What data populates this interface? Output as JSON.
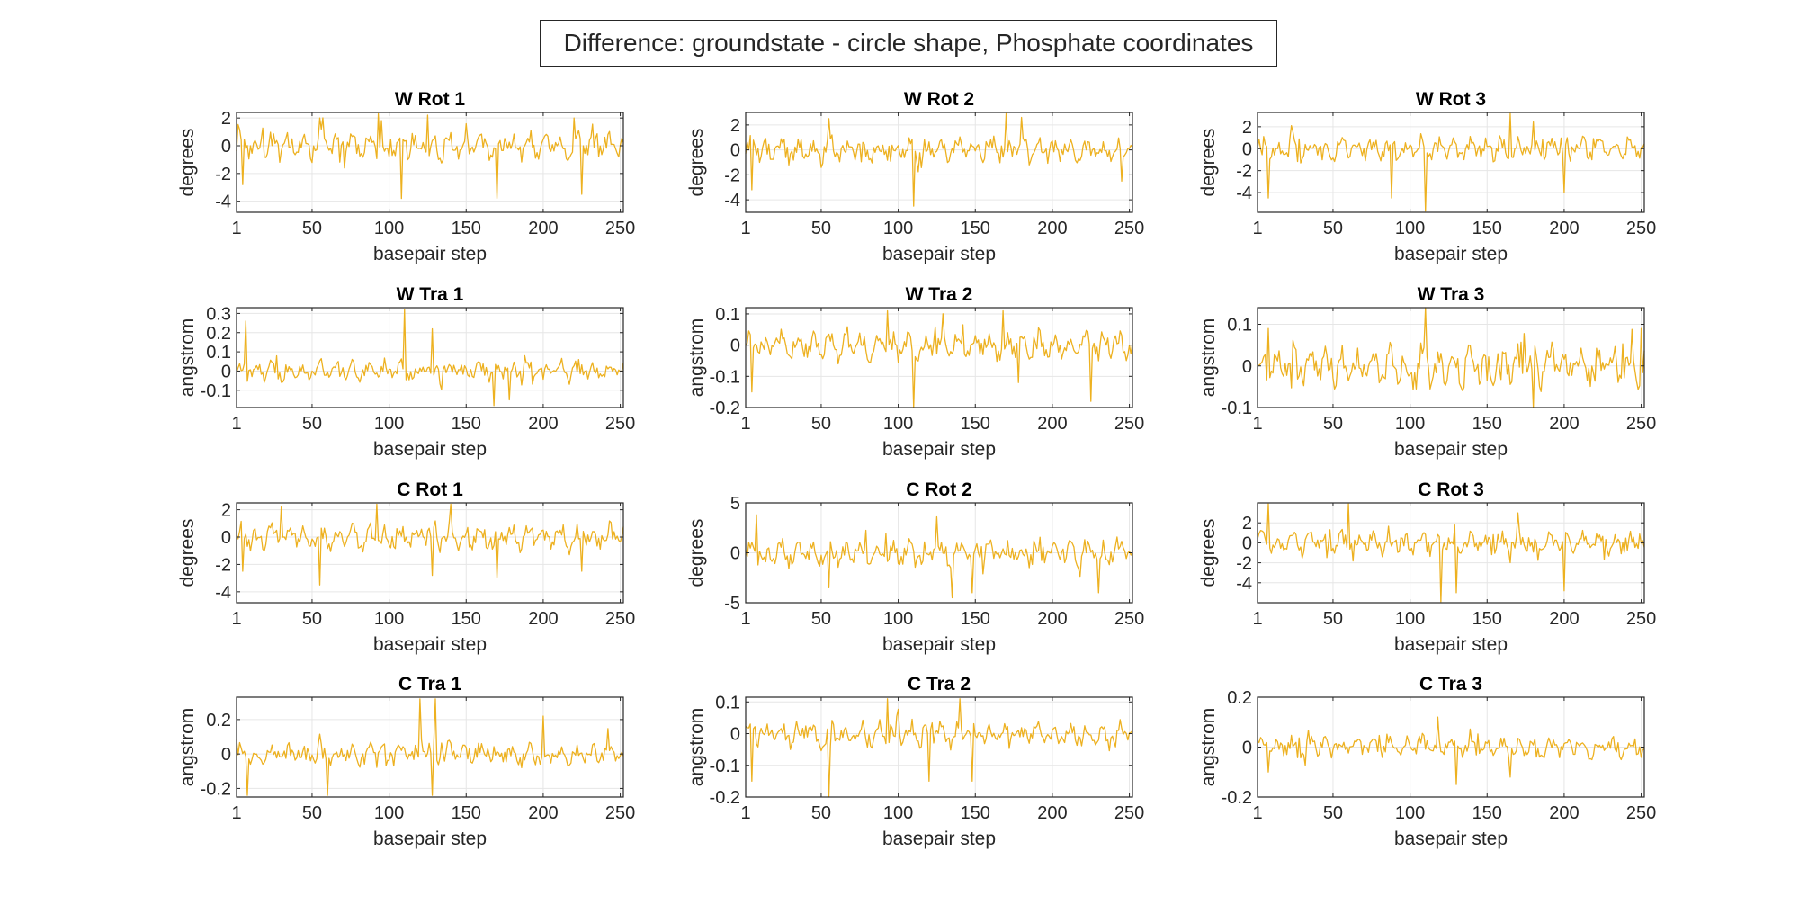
{
  "figure": {
    "suptitle": "Difference: groundstate - circle shape, Phosphate coordinates",
    "line_color": "#EDB120",
    "grid_color": "#e6e6e6",
    "axis_color": "#262626"
  },
  "chart_data": [
    {
      "type": "line",
      "title": "W Rot 1",
      "xlabel": "basepair step",
      "ylabel": "degrees",
      "xlim": [
        1,
        252
      ],
      "ylim": [
        -4.8,
        2.4
      ],
      "xticks": [
        1,
        50,
        100,
        150,
        200,
        250
      ],
      "yticks": [
        -4,
        -2,
        0,
        2
      ],
      "grid": true,
      "n_points": 252,
      "seed": 11,
      "amplitude": 0.9,
      "peaks": [
        [
          5,
          -2.8
        ],
        [
          55,
          2.0
        ],
        [
          93,
          2.3
        ],
        [
          108,
          -3.8
        ],
        [
          125,
          2.2
        ],
        [
          170,
          -3.8
        ],
        [
          220,
          2.0
        ],
        [
          225,
          -3.5
        ]
      ],
      "x_note": "x = 1..252",
      "series": [
        {
          "values": "generated"
        }
      ]
    },
    {
      "type": "line",
      "title": "W Rot 2",
      "xlabel": "basepair step",
      "ylabel": "degrees",
      "xlim": [
        1,
        252
      ],
      "ylim": [
        -5,
        3
      ],
      "xticks": [
        1,
        50,
        100,
        150,
        200,
        250
      ],
      "yticks": [
        -4,
        -2,
        0,
        2
      ],
      "grid": true,
      "n_points": 252,
      "seed": 12,
      "amplitude": 0.9,
      "peaks": [
        [
          5,
          -3.2
        ],
        [
          55,
          2.5
        ],
        [
          110,
          -4.5
        ],
        [
          170,
          2.9
        ],
        [
          180,
          2.6
        ],
        [
          245,
          -2.5
        ]
      ],
      "series": [
        {
          "values": "generated"
        }
      ]
    },
    {
      "type": "line",
      "title": "W Rot 3",
      "xlabel": "basepair step",
      "ylabel": "degrees",
      "xlim": [
        1,
        252
      ],
      "ylim": [
        -5.8,
        3.3
      ],
      "xticks": [
        1,
        50,
        100,
        150,
        200,
        250
      ],
      "yticks": [
        -4,
        -2,
        0,
        2
      ],
      "grid": true,
      "n_points": 252,
      "seed": 13,
      "amplitude": 1.0,
      "peaks": [
        [
          8,
          -4.5
        ],
        [
          88,
          -4.5
        ],
        [
          110,
          -5.7
        ],
        [
          165,
          3.2
        ],
        [
          200,
          -4.0
        ]
      ],
      "series": [
        {
          "values": "generated"
        }
      ]
    },
    {
      "type": "line",
      "title": "W Tra 1",
      "xlabel": "basepair step",
      "ylabel": "angstrom",
      "xlim": [
        1,
        252
      ],
      "ylim": [
        -0.19,
        0.33
      ],
      "xticks": [
        1,
        50,
        100,
        150,
        200,
        250
      ],
      "yticks": [
        -0.1,
        0,
        0.1,
        0.2,
        0.3
      ],
      "grid": true,
      "n_points": 252,
      "seed": 14,
      "amplitude": 0.05,
      "peaks": [
        [
          7,
          0.26
        ],
        [
          110,
          0.32
        ],
        [
          128,
          0.22
        ],
        [
          168,
          -0.18
        ],
        [
          178,
          -0.15
        ]
      ],
      "series": [
        {
          "values": "generated"
        }
      ]
    },
    {
      "type": "line",
      "title": "W Tra 2",
      "xlabel": "basepair step",
      "ylabel": "angstrom",
      "xlim": [
        1,
        252
      ],
      "ylim": [
        -0.2,
        0.12
      ],
      "xticks": [
        1,
        50,
        100,
        150,
        200,
        250
      ],
      "yticks": [
        -0.2,
        -0.1,
        0,
        0.1
      ],
      "grid": true,
      "n_points": 252,
      "seed": 15,
      "amplitude": 0.04,
      "peaks": [
        [
          5,
          -0.15
        ],
        [
          93,
          0.11
        ],
        [
          110,
          -0.2
        ],
        [
          168,
          0.11
        ],
        [
          178,
          -0.12
        ],
        [
          225,
          -0.18
        ]
      ],
      "series": [
        {
          "values": "generated"
        }
      ]
    },
    {
      "type": "line",
      "title": "W Tra 3",
      "xlabel": "basepair step",
      "ylabel": "angstrom",
      "xlim": [
        1,
        252
      ],
      "ylim": [
        -0.1,
        0.14
      ],
      "xticks": [
        1,
        50,
        100,
        150,
        200,
        250
      ],
      "yticks": [
        -0.1,
        0,
        0.1
      ],
      "grid": true,
      "n_points": 252,
      "seed": 16,
      "amplitude": 0.045,
      "peaks": [
        [
          8,
          0.09
        ],
        [
          110,
          0.14
        ],
        [
          180,
          -0.1
        ],
        [
          250,
          0.09
        ]
      ],
      "series": [
        {
          "values": "generated"
        }
      ]
    },
    {
      "type": "line",
      "title": "C Rot 1",
      "xlabel": "basepair step",
      "ylabel": "degrees",
      "xlim": [
        1,
        252
      ],
      "ylim": [
        -4.8,
        2.5
      ],
      "xticks": [
        1,
        50,
        100,
        150,
        200,
        250
      ],
      "yticks": [
        -4,
        -2,
        0,
        2
      ],
      "grid": true,
      "n_points": 252,
      "seed": 17,
      "amplitude": 0.9,
      "peaks": [
        [
          5,
          -2.5
        ],
        [
          30,
          2.2
        ],
        [
          55,
          -3.5
        ],
        [
          92,
          2.4
        ],
        [
          128,
          -2.8
        ],
        [
          140,
          2.4
        ],
        [
          170,
          -3.0
        ],
        [
          225,
          -2.5
        ]
      ],
      "series": [
        {
          "values": "generated"
        }
      ]
    },
    {
      "type": "line",
      "title": "C Rot 2",
      "xlabel": "basepair step",
      "ylabel": "degrees",
      "xlim": [
        1,
        252
      ],
      "ylim": [
        -5,
        5
      ],
      "xticks": [
        1,
        50,
        100,
        150,
        200,
        250
      ],
      "yticks": [
        -5,
        0,
        5
      ],
      "grid": true,
      "n_points": 252,
      "seed": 18,
      "amplitude": 1.2,
      "peaks": [
        [
          8,
          3.8
        ],
        [
          55,
          -3.5
        ],
        [
          125,
          3.6
        ],
        [
          135,
          -4.5
        ],
        [
          148,
          -4.0
        ],
        [
          230,
          -4.0
        ]
      ],
      "series": [
        {
          "values": "generated"
        }
      ]
    },
    {
      "type": "line",
      "title": "C Rot 3",
      "xlabel": "basepair step",
      "ylabel": "degrees",
      "xlim": [
        1,
        252
      ],
      "ylim": [
        -6,
        4
      ],
      "xticks": [
        1,
        50,
        100,
        150,
        200,
        250
      ],
      "yticks": [
        -4,
        -2,
        0,
        2
      ],
      "grid": true,
      "n_points": 252,
      "seed": 19,
      "amplitude": 1.0,
      "peaks": [
        [
          8,
          3.9
        ],
        [
          60,
          3.9
        ],
        [
          120,
          -5.9
        ],
        [
          130,
          -5.0
        ],
        [
          170,
          3.0
        ],
        [
          200,
          -4.8
        ]
      ],
      "series": [
        {
          "values": "generated"
        }
      ]
    },
    {
      "type": "line",
      "title": "C Tra 1",
      "xlabel": "basepair step",
      "ylabel": "angstrom",
      "xlim": [
        1,
        252
      ],
      "ylim": [
        -0.25,
        0.33
      ],
      "xticks": [
        1,
        50,
        100,
        150,
        200,
        250
      ],
      "yticks": [
        -0.2,
        0,
        0.2
      ],
      "grid": true,
      "n_points": 252,
      "seed": 20,
      "amplitude": 0.06,
      "peaks": [
        [
          8,
          -0.24
        ],
        [
          60,
          -0.24
        ],
        [
          120,
          0.32
        ],
        [
          128,
          -0.24
        ],
        [
          130,
          0.32
        ],
        [
          200,
          0.22
        ]
      ],
      "series": [
        {
          "values": "generated"
        }
      ]
    },
    {
      "type": "line",
      "title": "C Tra 2",
      "xlabel": "basepair step",
      "ylabel": "angstrom",
      "xlim": [
        1,
        252
      ],
      "ylim": [
        -0.2,
        0.115
      ],
      "xticks": [
        1,
        50,
        100,
        150,
        200,
        250
      ],
      "yticks": [
        -0.2,
        -0.1,
        0,
        0.1
      ],
      "grid": true,
      "n_points": 252,
      "seed": 21,
      "amplitude": 0.04,
      "peaks": [
        [
          5,
          -0.15
        ],
        [
          55,
          -0.2
        ],
        [
          93,
          0.11
        ],
        [
          120,
          -0.15
        ],
        [
          140,
          0.11
        ],
        [
          148,
          -0.15
        ]
      ],
      "series": [
        {
          "values": "generated"
        }
      ]
    },
    {
      "type": "line",
      "title": "C Tra 3",
      "xlabel": "basepair step",
      "ylabel": "angstrom",
      "xlim": [
        1,
        252
      ],
      "ylim": [
        -0.2,
        0.2
      ],
      "xticks": [
        1,
        50,
        100,
        150,
        200,
        250
      ],
      "yticks": [
        -0.2,
        0,
        0.2
      ],
      "grid": true,
      "n_points": 252,
      "seed": 22,
      "amplitude": 0.04,
      "peaks": [
        [
          8,
          -0.1
        ],
        [
          118,
          0.12
        ],
        [
          130,
          -0.15
        ],
        [
          165,
          -0.12
        ]
      ],
      "series": [
        {
          "values": "generated"
        }
      ]
    }
  ]
}
